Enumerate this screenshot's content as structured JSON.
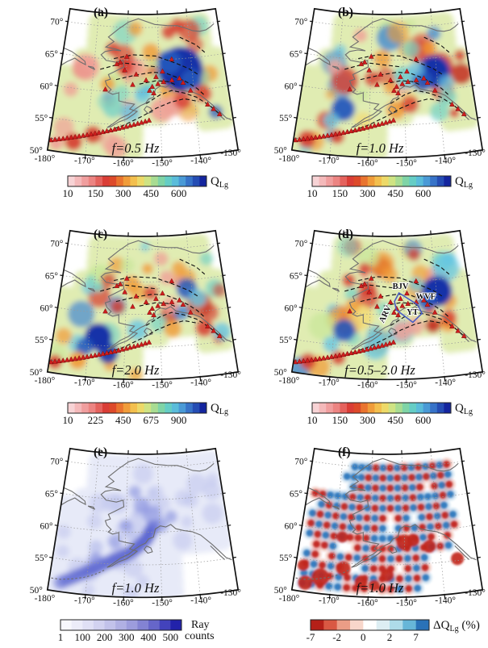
{
  "axes": {
    "lat_labels": [
      "70°",
      "65°",
      "60°",
      "55°",
      "50°"
    ],
    "lon_labels": [
      "-180°",
      "-170°",
      "-160°",
      "-150°",
      "-140°",
      "-130°"
    ]
  },
  "colors": {
    "coastline": "#6e6e6e",
    "graticule": "#9a9a9a",
    "fault_line": "#111111",
    "station_triangle": "#cf1d1d",
    "region_outline_blue": "#4a5ec4",
    "map_border": "#111111"
  },
  "chart_data": [
    {
      "panel_label": "(a)",
      "title": "f=0.5 Hz",
      "type": "map-heatmap",
      "region": "Alaska",
      "colorbar": {
        "label_main": "Q",
        "label_sub": "Lg",
        "label_suffix": "",
        "label_line2": "",
        "ticks": [
          "10",
          "150",
          "300",
          "450",
          "600"
        ],
        "range": [
          10,
          600
        ],
        "palette": [
          "#f7d3d5",
          "#f4b9ba",
          "#f09e9e",
          "#ec8482",
          "#e4625d",
          "#da3d36",
          "#dd4a2a",
          "#e9742f",
          "#f09c3a",
          "#f3bf4e",
          "#edd968",
          "#cfe383",
          "#a8dc92",
          "#7fd4a6",
          "#65cdc5",
          "#5abcda",
          "#4a9ad6",
          "#3773c8",
          "#254db4",
          "#14259e"
        ]
      },
      "description": "Lg-wave quality factor QLg at 0.5 Hz. Low Q (red/orange) along the Aleutian arc and southern coast; a strong high-Q (dark blue) anomaly in the east-central interior. Red triangles mark volcanoes/stations; dashed lines are major faults."
    },
    {
      "panel_label": "(b)",
      "title": "f=1.0 Hz",
      "type": "map-heatmap",
      "region": "Alaska",
      "colorbar": {
        "label_main": "Q",
        "label_sub": "Lg",
        "label_suffix": "",
        "label_line2": "",
        "ticks": [
          "10",
          "150",
          "300",
          "450",
          "600"
        ],
        "range": [
          10,
          600
        ],
        "palette": [
          "#f7d3d5",
          "#f4b9ba",
          "#f09e9e",
          "#ec8482",
          "#e4625d",
          "#da3d36",
          "#dd4a2a",
          "#e9742f",
          "#f09c3a",
          "#f3bf4e",
          "#edd968",
          "#cfe383",
          "#a8dc92",
          "#7fd4a6",
          "#65cdc5",
          "#5abcda",
          "#4a9ad6",
          "#3773c8",
          "#254db4",
          "#14259e"
        ]
      },
      "description": "QLg at 1.0 Hz. High-Q dark blue anomaly in the eastern interior and offshore to the southwest; widespread low-Q red patches along the volcanic arc and interior."
    },
    {
      "panel_label": "(c)",
      "title": "f=2.0 Hz",
      "type": "map-heatmap",
      "region": "Alaska",
      "colorbar": {
        "label_main": "Q",
        "label_sub": "Lg",
        "label_suffix": "",
        "label_line2": "",
        "ticks": [
          "10",
          "225",
          "450",
          "675",
          "900"
        ],
        "range": [
          10,
          900
        ],
        "palette": [
          "#f7d3d5",
          "#f4b9ba",
          "#f09e9e",
          "#ec8482",
          "#e4625d",
          "#da3d36",
          "#dd4a2a",
          "#e9742f",
          "#f09c3a",
          "#f3bf4e",
          "#edd968",
          "#cfe383",
          "#a8dc92",
          "#7fd4a6",
          "#65cdc5",
          "#5abcda",
          "#4a9ad6",
          "#3773c8",
          "#254db4",
          "#14259e"
        ]
      },
      "description": "QLg at 2.0 Hz. High-Q (blue/navy) region in the southwest Bering Sea sector and eastern interior; low-Q red anomalies scattered across the arc and interior."
    },
    {
      "panel_label": "(d)",
      "title": "f=0.5–2.0 Hz",
      "type": "map-heatmap",
      "region": "Alaska",
      "colorbar": {
        "label_main": "Q",
        "label_sub": "Lg",
        "label_suffix": "",
        "label_line2": "",
        "ticks": [
          "10",
          "150",
          "300",
          "450",
          "600"
        ],
        "range": [
          10,
          600
        ],
        "palette": [
          "#f7d3d5",
          "#f4b9ba",
          "#f09e9e",
          "#ec8482",
          "#e4625d",
          "#da3d36",
          "#dd4a2a",
          "#e9742f",
          "#f09c3a",
          "#f3bf4e",
          "#edd968",
          "#cfe383",
          "#a8dc92",
          "#7fd4a6",
          "#65cdc5",
          "#5abcda",
          "#4a9ad6",
          "#3773c8",
          "#254db4",
          "#14259e"
        ]
      },
      "annotations": [
        {
          "text": "BJV"
        },
        {
          "text": "WVF"
        },
        {
          "text": "YT"
        },
        {
          "text": "ARV"
        }
      ],
      "description": "Broadband QLg (0.5–2.0 Hz) with labeled tectonic regions: BJV, WVF (Wrangell volcanic field), YT (Yakutat terrane) and ARV, outlined by blue polygons."
    },
    {
      "panel_label": "(e)",
      "title": "f=1.0 Hz",
      "type": "map-density",
      "region": "Alaska",
      "colorbar": {
        "label_main": "Ray",
        "label_sub": "",
        "label_suffix": "",
        "label_line2": "counts",
        "ticks": [
          "1",
          "100",
          "200",
          "300",
          "400",
          "500"
        ],
        "range": [
          1,
          500
        ],
        "palette": [
          "#f7f7fd",
          "#ececf9",
          "#e0e0f5",
          "#d2d2f0",
          "#c2c2ea",
          "#b0b0e3",
          "#9c9cdc",
          "#8383d3",
          "#6666c9",
          "#4343bc",
          "#2222aa"
        ]
      },
      "description": "Lg ray-path count density at 1.0 Hz; highest counts (dark blue) along a band from the Aleutians northeast into central and south-central Alaska."
    },
    {
      "panel_label": "(f)",
      "title": "f=1.0 Hz",
      "type": "map-checkerboard",
      "region": "Alaska",
      "colorbar": {
        "label_main": "ΔQ",
        "label_sub": "Lg",
        "label_suffix": " (%)",
        "label_line2": "",
        "ticks": [
          "-7",
          "-2",
          "0",
          "2",
          "7"
        ],
        "range": [
          -7,
          7
        ],
        "palette": [
          "#b42018",
          "#d95843",
          "#eb9d86",
          "#f8d6ca",
          "#ffffff",
          "#ddeef3",
          "#aedbe9",
          "#67b6d8",
          "#2a72b8"
        ]
      },
      "description": "Checkerboard resolution test at 1.0 Hz: alternating negative (red) and positive (blue) QLg perturbations recovered across the well-sampled region."
    }
  ]
}
